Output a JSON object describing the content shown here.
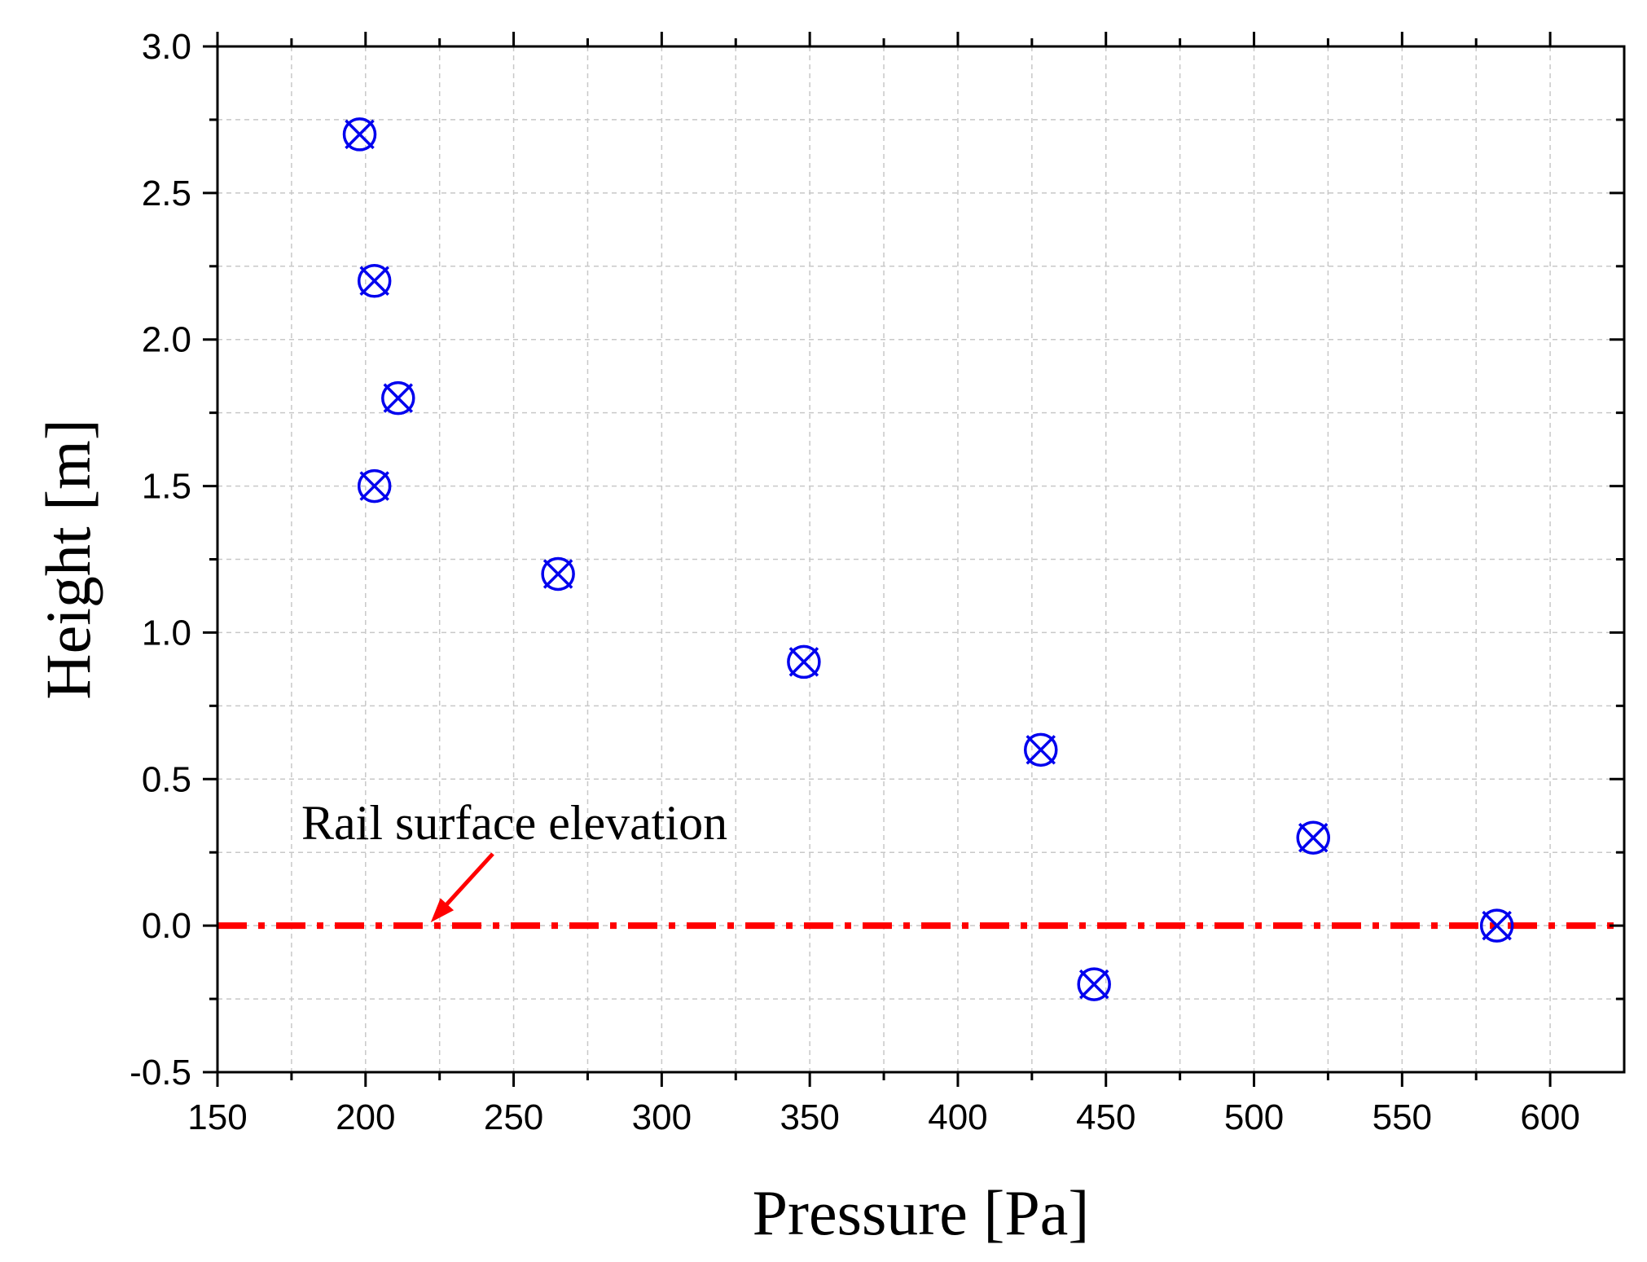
{
  "chart_data": {
    "type": "scatter",
    "title": "",
    "xlabel": "Pressure [Pa]",
    "ylabel": "Height [m]",
    "xlim": [
      150,
      625
    ],
    "ylim": [
      -0.5,
      3.0
    ],
    "grid": true,
    "x_ticks": [
      150,
      200,
      250,
      300,
      350,
      400,
      450,
      500,
      550,
      600
    ],
    "x_tick_labels": [
      "150",
      "200",
      "250",
      "300",
      "350",
      "400",
      "450",
      "500",
      "550",
      "600"
    ],
    "y_ticks": [
      -0.5,
      0.0,
      0.5,
      1.0,
      1.5,
      2.0,
      2.5,
      3.0
    ],
    "y_tick_labels": [
      "-0.5",
      "0.0",
      "0.5",
      "1.0",
      "1.5",
      "2.0",
      "2.5",
      "3.0"
    ],
    "series": [
      {
        "name": "Pressure",
        "marker": "circle-x",
        "color": "#0000ee",
        "x": [
          198,
          203,
          211,
          203,
          265,
          348,
          428,
          446,
          520,
          582
        ],
        "y": [
          2.7,
          2.2,
          1.8,
          1.5,
          1.2,
          0.9,
          0.6,
          -0.2,
          0.3,
          0.0
        ]
      }
    ],
    "reference_line": {
      "y": 0.0,
      "style": "dash-dot",
      "color": "#ff0000"
    },
    "annotation": {
      "text": "Rail surface elevation",
      "arrow_to": {
        "x": 222,
        "y": 0.0
      },
      "color": "#ff0000"
    }
  }
}
